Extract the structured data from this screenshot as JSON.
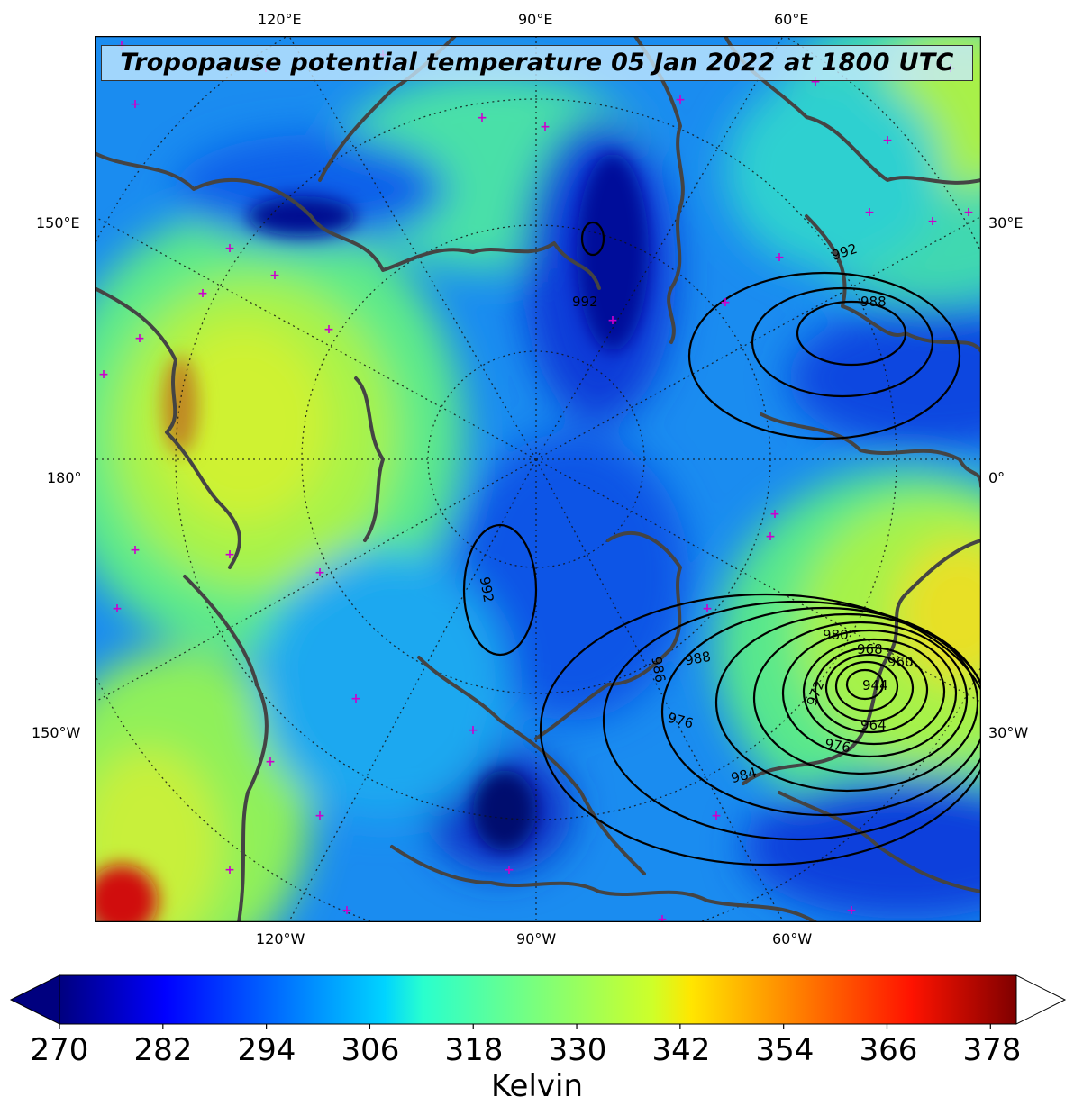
{
  "title": "Tropopause potential temperature 05 Jan 2022 at 1800 UTC",
  "top_labels": [
    "120°E",
    "90°E",
    "60°E"
  ],
  "bottom_labels": [
    "120°W",
    "90°W",
    "60°W"
  ],
  "left_labels": [
    "150°E",
    "180°",
    "150°W"
  ],
  "right_labels": [
    "30°E",
    "0°",
    "30°W"
  ],
  "colorbar": {
    "ticks": [
      "270",
      "282",
      "294",
      "306",
      "318",
      "330",
      "342",
      "354",
      "366",
      "378"
    ],
    "units": "Kelvin",
    "min": 270,
    "max": 381,
    "extend": "both",
    "colormap": "jet"
  },
  "contours": {
    "labels": [
      "992",
      "992",
      "992",
      "988",
      "988",
      "986",
      "976",
      "984",
      "980",
      "968",
      "972",
      "960",
      "944",
      "976",
      "964"
    ]
  },
  "colors": {
    "coastline": "#444444",
    "station_markers": "#cc00cc",
    "contour_lines": "#000000"
  }
}
